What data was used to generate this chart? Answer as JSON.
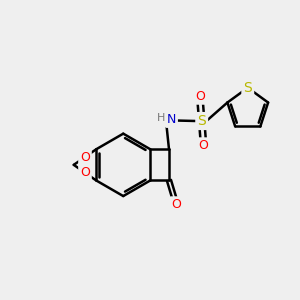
{
  "bg_color": "#efefef",
  "bond_color": "#000000",
  "bond_width": 1.8,
  "atom_colors": {
    "O": "#ff0000",
    "N": "#0000cd",
    "S": "#b8b800",
    "H": "#555555",
    "C": "#000000"
  },
  "font_size": 9,
  "fig_size": [
    3.0,
    3.0
  ],
  "dpi": 100
}
